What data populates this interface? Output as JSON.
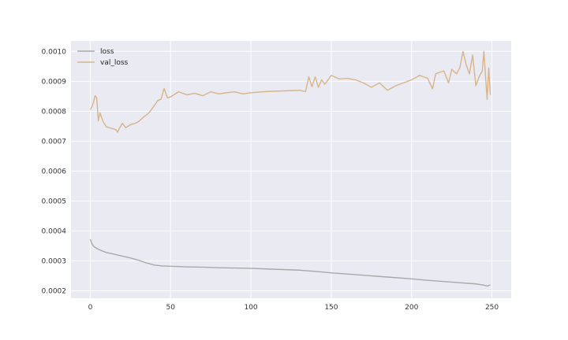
{
  "chart_data": {
    "type": "line",
    "title": "",
    "xlabel": "",
    "ylabel": "",
    "xlim": [
      -12,
      262
    ],
    "ylim": [
      0.000175,
      0.001035
    ],
    "x_ticks": [
      0,
      50,
      100,
      150,
      200,
      250
    ],
    "x_tick_labels": [
      "0",
      "50",
      "100",
      "150",
      "200",
      "250"
    ],
    "y_ticks": [
      0.0002,
      0.0003,
      0.0004,
      0.0005,
      0.0006,
      0.0007,
      0.0008,
      0.0009,
      0.001
    ],
    "y_tick_labels": [
      "0.0002",
      "0.0003",
      "0.0004",
      "0.0005",
      "0.0006",
      "0.0007",
      "0.0008",
      "0.0009",
      "0.0010"
    ],
    "grid": true,
    "legend": "top-left",
    "series": [
      {
        "name": "loss",
        "color": "#a9a9a9",
        "points": [
          [
            0,
            0.000372
          ],
          [
            1,
            0.000358
          ],
          [
            2,
            0.000349
          ],
          [
            3,
            0.000345
          ],
          [
            4,
            0.000342
          ],
          [
            5,
            0.000339
          ],
          [
            8,
            0.000332
          ],
          [
            10,
            0.000328
          ],
          [
            15,
            0.000322
          ],
          [
            20,
            0.000316
          ],
          [
            25,
            0.00031
          ],
          [
            30,
            0.000302
          ],
          [
            35,
            0.000293
          ],
          [
            40,
            0.000286
          ],
          [
            45,
            0.000283
          ],
          [
            50,
            0.000282
          ],
          [
            60,
            0.00028
          ],
          [
            70,
            0.000279
          ],
          [
            80,
            0.000277
          ],
          [
            90,
            0.000276
          ],
          [
            100,
            0.000275
          ],
          [
            110,
            0.000273
          ],
          [
            120,
            0.000271
          ],
          [
            130,
            0.000269
          ],
          [
            140,
            0.000265
          ],
          [
            150,
            0.00026
          ],
          [
            160,
            0.000256
          ],
          [
            170,
            0.000252
          ],
          [
            180,
            0.000248
          ],
          [
            190,
            0.000244
          ],
          [
            200,
            0.00024
          ],
          [
            210,
            0.000235
          ],
          [
            220,
            0.000231
          ],
          [
            230,
            0.000227
          ],
          [
            240,
            0.000223
          ],
          [
            245,
            0.000219
          ],
          [
            247,
            0.000216
          ],
          [
            249,
            0.00022
          ]
        ]
      },
      {
        "name": "val_loss",
        "color": "#d8b48a",
        "points": [
          [
            0,
            0.000805
          ],
          [
            1,
            0.000815
          ],
          [
            2,
            0.00083
          ],
          [
            3,
            0.000852
          ],
          [
            4,
            0.000845
          ],
          [
            5,
            0.000768
          ],
          [
            6,
            0.000795
          ],
          [
            8,
            0.000765
          ],
          [
            10,
            0.000748
          ],
          [
            12,
            0.000745
          ],
          [
            14,
            0.000742
          ],
          [
            16,
            0.000738
          ],
          [
            17,
            0.00073
          ],
          [
            18,
            0.000742
          ],
          [
            20,
            0.00076
          ],
          [
            22,
            0.000745
          ],
          [
            25,
            0.000755
          ],
          [
            28,
            0.00076
          ],
          [
            30,
            0.000765
          ],
          [
            33,
            0.00078
          ],
          [
            36,
            0.000792
          ],
          [
            38,
            0.000805
          ],
          [
            40,
            0.00082
          ],
          [
            42,
            0.000836
          ],
          [
            44,
            0.00084
          ],
          [
            46,
            0.000876
          ],
          [
            48,
            0.000845
          ],
          [
            50,
            0.000848
          ],
          [
            55,
            0.000865
          ],
          [
            60,
            0.000855
          ],
          [
            65,
            0.00086
          ],
          [
            70,
            0.000852
          ],
          [
            75,
            0.000865
          ],
          [
            80,
            0.000858
          ],
          [
            85,
            0.000862
          ],
          [
            90,
            0.000865
          ],
          [
            95,
            0.000858
          ],
          [
            100,
            0.000862
          ],
          [
            110,
            0.000866
          ],
          [
            120,
            0.000868
          ],
          [
            130,
            0.00087
          ],
          [
            134,
            0.000866
          ],
          [
            136,
            0.000915
          ],
          [
            138,
            0.000882
          ],
          [
            140,
            0.000915
          ],
          [
            142,
            0.00088
          ],
          [
            144,
            0.000905
          ],
          [
            146,
            0.00089
          ],
          [
            150,
            0.00092
          ],
          [
            155,
            0.000908
          ],
          [
            160,
            0.00091
          ],
          [
            165,
            0.000905
          ],
          [
            170,
            0.000895
          ],
          [
            175,
            0.00088
          ],
          [
            180,
            0.000895
          ],
          [
            185,
            0.00087
          ],
          [
            190,
            0.000885
          ],
          [
            195,
            0.000895
          ],
          [
            200,
            0.000905
          ],
          [
            205,
            0.00092
          ],
          [
            210,
            0.00091
          ],
          [
            213,
            0.000875
          ],
          [
            215,
            0.000925
          ],
          [
            220,
            0.000935
          ],
          [
            223,
            0.000895
          ],
          [
            225,
            0.00094
          ],
          [
            228,
            0.000925
          ],
          [
            230,
            0.000945
          ],
          [
            232,
            0.001
          ],
          [
            234,
            0.000955
          ],
          [
            236,
            0.000925
          ],
          [
            238,
            0.000988
          ],
          [
            240,
            0.000885
          ],
          [
            242,
            0.000915
          ],
          [
            244,
            0.000935
          ],
          [
            245,
            0.001
          ],
          [
            247,
            0.00084
          ],
          [
            248,
            0.000945
          ],
          [
            249,
            0.000855
          ]
        ]
      }
    ]
  }
}
